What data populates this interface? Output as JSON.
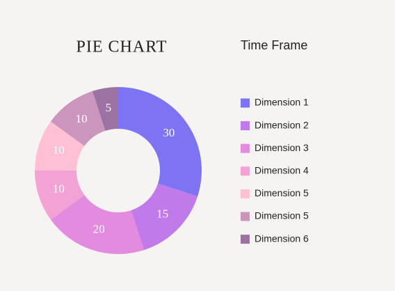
{
  "chart_data": {
    "type": "donut",
    "title": "PIE CHART",
    "legend_title": "Time Frame",
    "categories": [
      "Dimension 1",
      "Dimension 2",
      "Dimension 3",
      "Dimension 4",
      "Dimension 5",
      "Dimension 5",
      "Dimension 6"
    ],
    "values": [
      30,
      15,
      20,
      10,
      10,
      10,
      5
    ],
    "colors": [
      "#7d74f4",
      "#c07ae9",
      "#e28bdf",
      "#f2a2d5",
      "#ffc0d6",
      "#cc95bd",
      "#9b72a2"
    ],
    "legend": "right"
  }
}
